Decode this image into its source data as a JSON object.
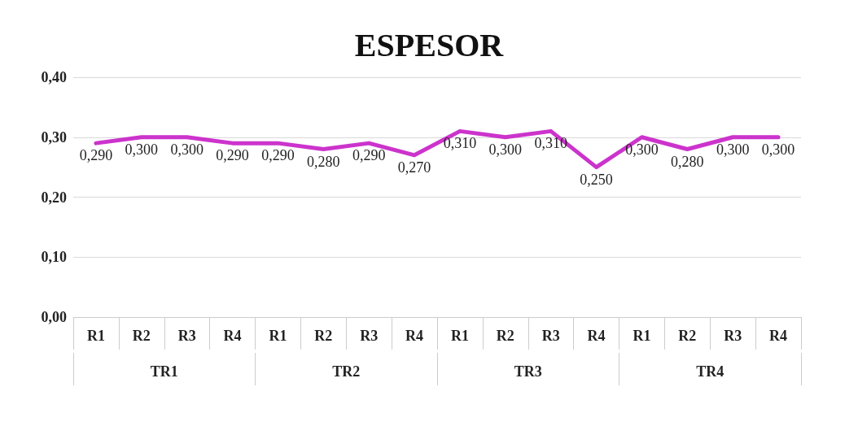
{
  "chart_data": {
    "type": "line",
    "title": "ESPESOR",
    "categories": [
      "R1",
      "R2",
      "R3",
      "R4",
      "R1",
      "R2",
      "R3",
      "R4",
      "R1",
      "R2",
      "R3",
      "R4",
      "R1",
      "R2",
      "R3",
      "R4"
    ],
    "annotations": [
      "TR1",
      "TR2",
      "TR3",
      "TR4"
    ],
    "series": [
      {
        "color": "#cc33cc",
        "values": [
          0.29,
          0.3,
          0.3,
          0.29,
          0.29,
          0.28,
          0.29,
          0.27,
          0.31,
          0.3,
          0.31,
          0.25,
          0.3,
          0.28,
          0.3,
          0.3
        ],
        "value_labels": [
          "0,290",
          "0,300",
          "0,300",
          "0,290",
          "0,290",
          "0,280",
          "0,290",
          "0,270",
          "0,310",
          "0,300",
          "0,310",
          "0,250",
          "0,300",
          "0,280",
          "0,300",
          "0,300"
        ]
      }
    ],
    "ylim": [
      0,
      0.4
    ],
    "yticks": [
      {
        "value": 0,
        "label": "0,00"
      },
      {
        "value": 0.1,
        "label": "0,10"
      },
      {
        "value": 0.2,
        "label": "0,20"
      },
      {
        "value": 0.3,
        "label": "0,30"
      },
      {
        "value": 0.4,
        "label": "0,40"
      }
    ],
    "grid": "y",
    "marker": "none",
    "line_style": "solid"
  }
}
